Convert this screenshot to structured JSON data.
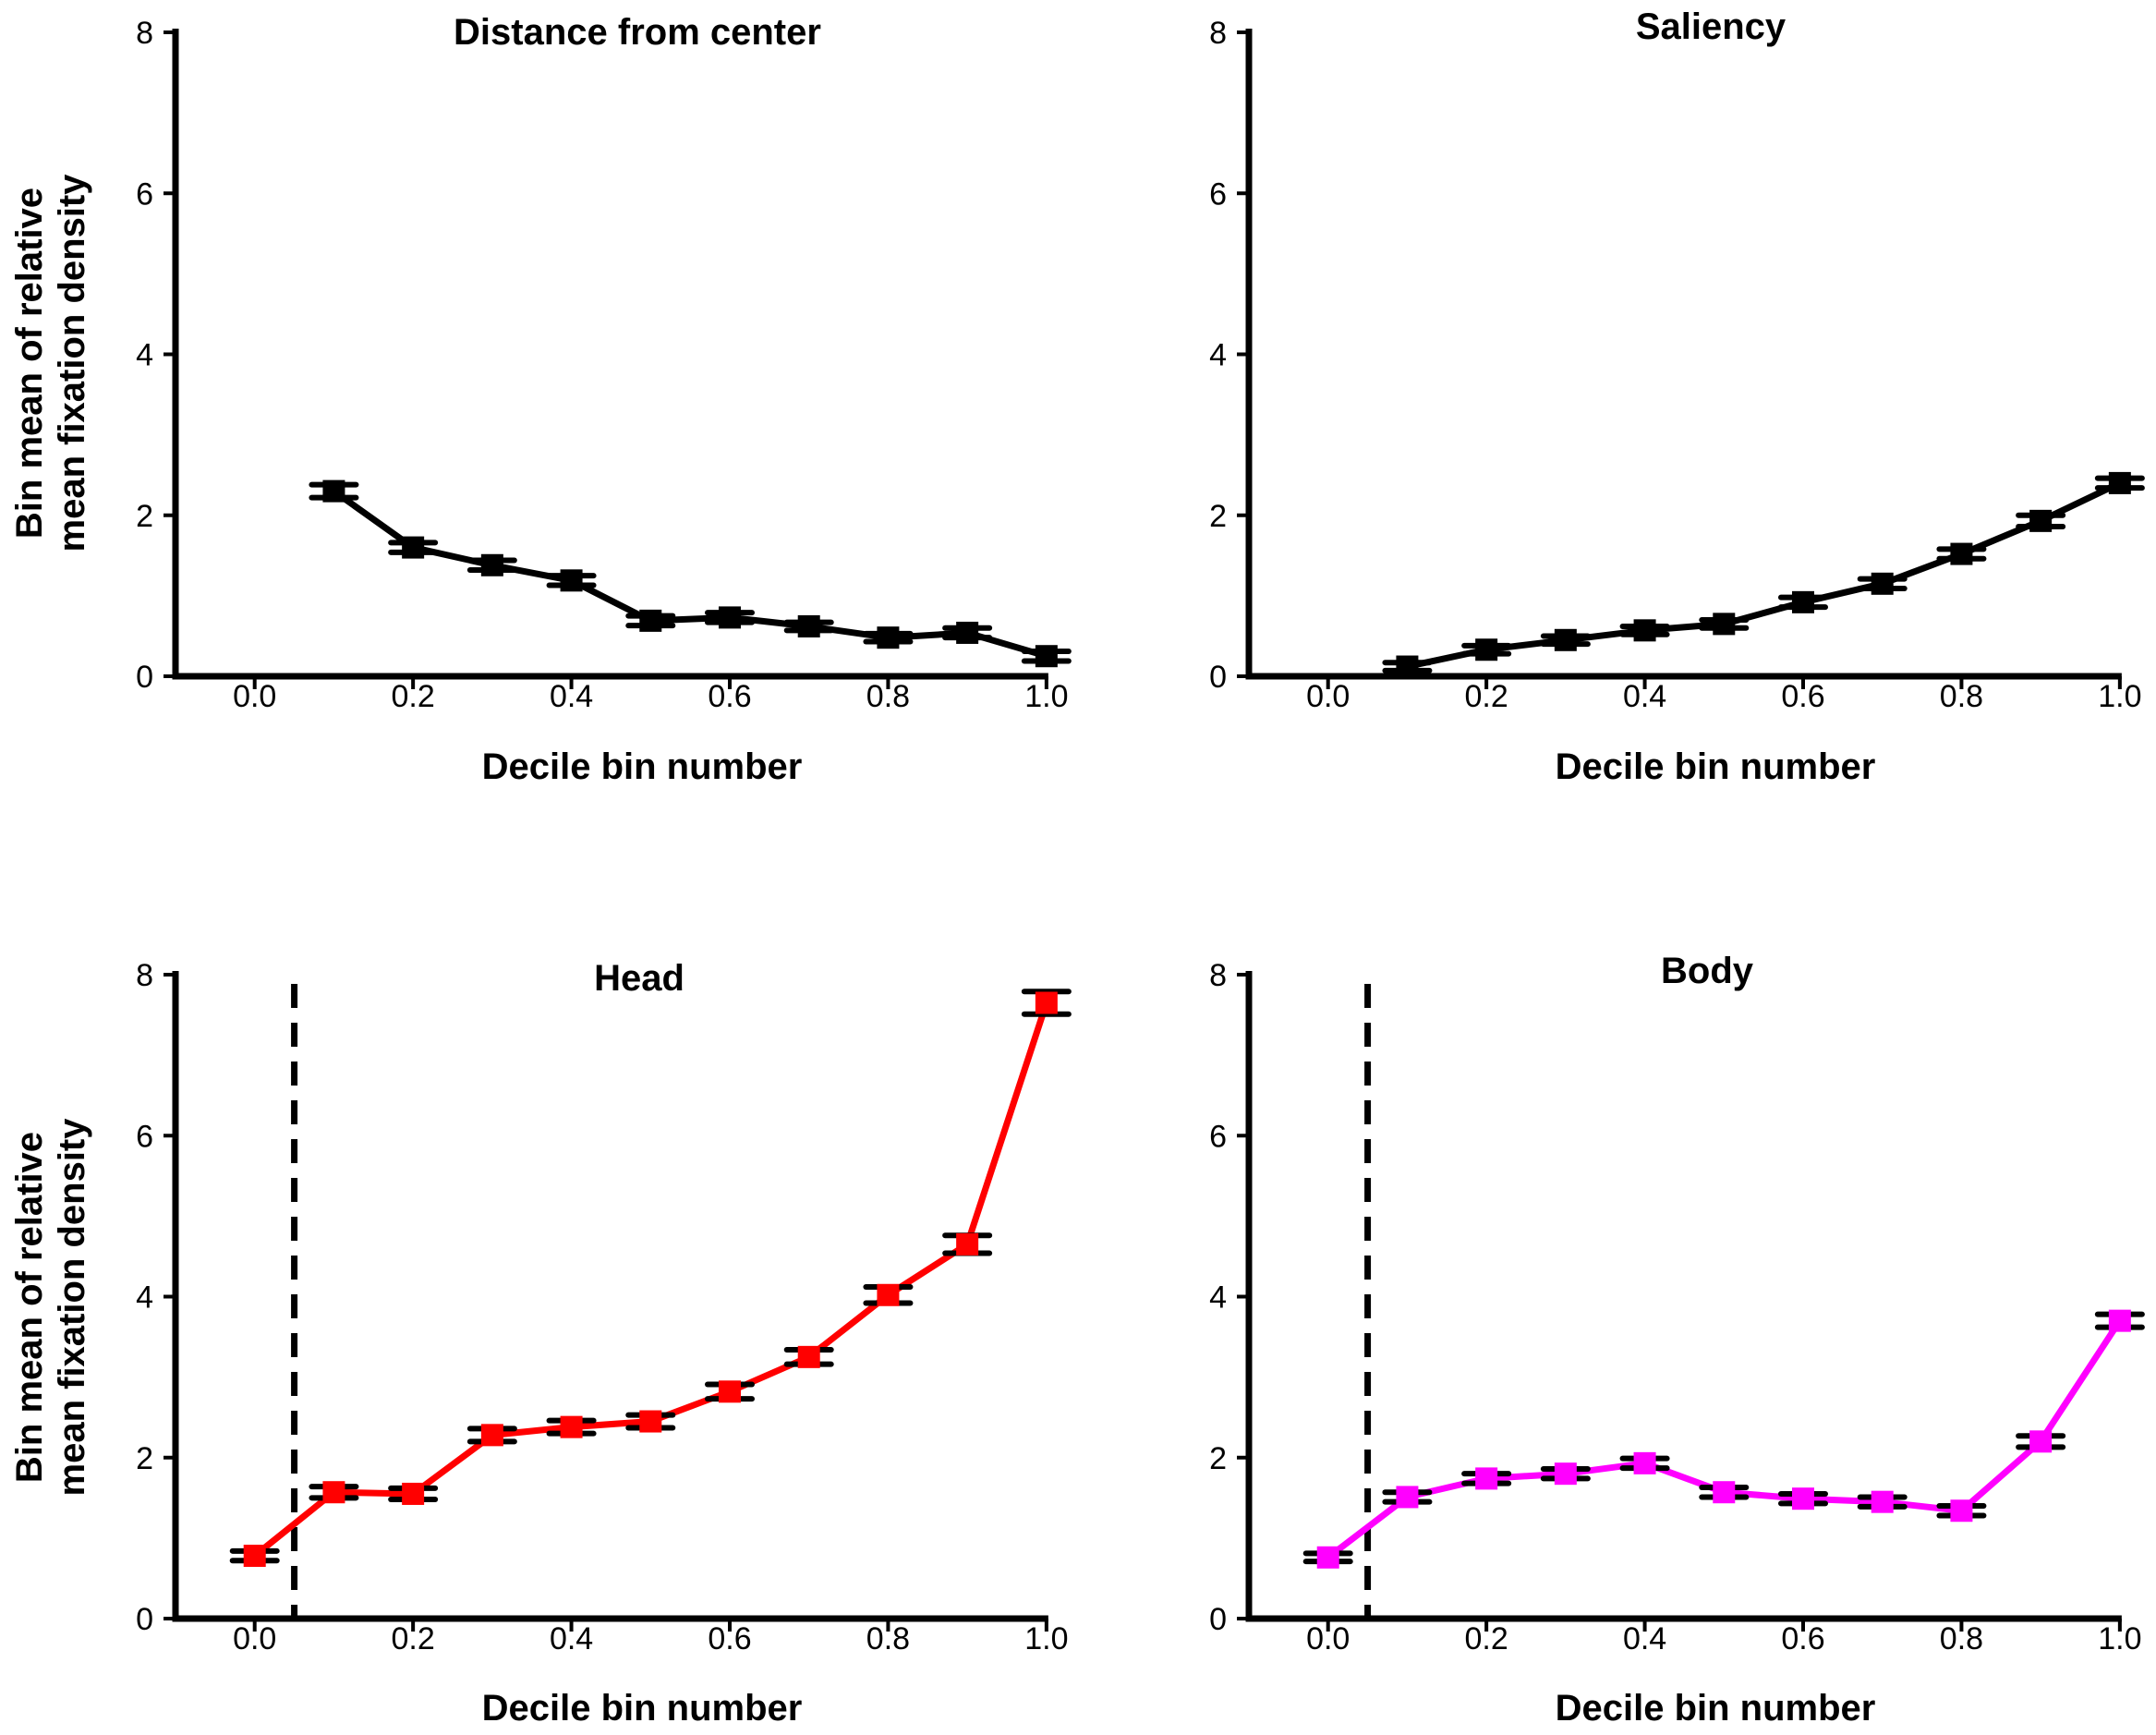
{
  "chart_data": [
    {
      "type": "line",
      "title": "Distance from center",
      "xlabel": "Decile bin number",
      "ylabel": [
        "Bin mean of relative",
        "mean fixation density"
      ],
      "xlim": [
        -0.1,
        1.02
      ],
      "ylim": [
        0,
        8
      ],
      "xticks": [
        0.0,
        0.2,
        0.4,
        0.6,
        0.8,
        1.0
      ],
      "xtick_labels": [
        "0.0",
        "0.2",
        "0.4",
        "0.6",
        "0.8",
        "1.0"
      ],
      "yticks": [
        0,
        2,
        4,
        6,
        8
      ],
      "ytick_labels": [
        "0",
        "2",
        "4",
        "6",
        "8"
      ],
      "dashed_vline_x": null,
      "series": [
        {
          "name": "Distance from center",
          "color": "#000000",
          "marker_color": "#000000",
          "x": [
            0.1,
            0.2,
            0.3,
            0.4,
            0.5,
            0.6,
            0.7,
            0.8,
            0.9,
            1.0
          ],
          "y": [
            2.3,
            1.6,
            1.38,
            1.19,
            0.69,
            0.73,
            0.62,
            0.48,
            0.54,
            0.25
          ],
          "err": [
            0.08,
            0.06,
            0.06,
            0.06,
            0.06,
            0.06,
            0.05,
            0.05,
            0.06,
            0.06
          ]
        }
      ]
    },
    {
      "type": "line",
      "title": "Saliency",
      "xlabel": "Decile bin number",
      "ylabel": null,
      "xlim": [
        -0.1,
        1.02
      ],
      "ylim": [
        0,
        8
      ],
      "xticks": [
        0.0,
        0.2,
        0.4,
        0.6,
        0.8,
        1.0
      ],
      "xtick_labels": [
        "0.0",
        "0.2",
        "0.4",
        "0.6",
        "0.8",
        "1.0"
      ],
      "yticks": [
        0,
        2,
        4,
        6,
        8
      ],
      "ytick_labels": [
        "0",
        "2",
        "4",
        "6",
        "8"
      ],
      "dashed_vline_x": null,
      "series": [
        {
          "name": "Saliency",
          "color": "#000000",
          "marker_color": "#000000",
          "x": [
            0.1,
            0.2,
            0.3,
            0.4,
            0.5,
            0.6,
            0.7,
            0.8,
            0.9,
            1.0
          ],
          "y": [
            0.12,
            0.33,
            0.45,
            0.57,
            0.65,
            0.92,
            1.15,
            1.52,
            1.93,
            2.4
          ],
          "err": [
            0.05,
            0.05,
            0.05,
            0.05,
            0.05,
            0.06,
            0.06,
            0.06,
            0.07,
            0.06
          ]
        }
      ]
    },
    {
      "type": "line",
      "title": "Head",
      "xlabel": "Decile bin number",
      "ylabel": [
        "Bin mean of relative",
        "mean fixation density"
      ],
      "xlim": [
        -0.1,
        1.02
      ],
      "ylim": [
        0,
        8
      ],
      "xticks": [
        0.0,
        0.2,
        0.4,
        0.6,
        0.8,
        1.0
      ],
      "xtick_labels": [
        "0.0",
        "0.2",
        "0.4",
        "0.6",
        "0.8",
        "1.0"
      ],
      "yticks": [
        0,
        2,
        4,
        6,
        8
      ],
      "ytick_labels": [
        "0",
        "2",
        "4",
        "6",
        "8"
      ],
      "dashed_vline_x": 0.05,
      "series": [
        {
          "name": "Head",
          "color": "#ff0000",
          "marker_color": "#ff0000",
          "x": [
            0.0,
            0.1,
            0.2,
            0.3,
            0.4,
            0.5,
            0.6,
            0.7,
            0.8,
            0.9,
            1.0
          ],
          "y": [
            0.78,
            1.57,
            1.55,
            2.28,
            2.38,
            2.45,
            2.82,
            3.25,
            4.02,
            4.65,
            7.65
          ],
          "err": [
            0.06,
            0.07,
            0.07,
            0.08,
            0.08,
            0.08,
            0.09,
            0.09,
            0.1,
            0.11,
            0.14
          ]
        }
      ]
    },
    {
      "type": "line",
      "title": "Body",
      "xlabel": "Decile bin number",
      "ylabel": null,
      "xlim": [
        -0.1,
        1.02
      ],
      "ylim": [
        0,
        8
      ],
      "xticks": [
        0.0,
        0.2,
        0.4,
        0.6,
        0.8,
        1.0
      ],
      "xtick_labels": [
        "0.0",
        "0.2",
        "0.4",
        "0.6",
        "0.8",
        "1.0"
      ],
      "yticks": [
        0,
        2,
        4,
        6,
        8
      ],
      "ytick_labels": [
        "0",
        "2",
        "4",
        "6",
        "8"
      ],
      "dashed_vline_x": 0.05,
      "series": [
        {
          "name": "Body",
          "color": "#ff00ff",
          "marker_color": "#ff00ff",
          "x": [
            0.0,
            0.1,
            0.2,
            0.3,
            0.4,
            0.5,
            0.6,
            0.7,
            0.8,
            0.9,
            1.0
          ],
          "y": [
            0.76,
            1.51,
            1.74,
            1.8,
            1.93,
            1.57,
            1.49,
            1.45,
            1.34,
            2.2,
            3.7
          ],
          "err": [
            0.05,
            0.06,
            0.06,
            0.06,
            0.06,
            0.06,
            0.06,
            0.06,
            0.06,
            0.07,
            0.08
          ]
        }
      ]
    }
  ]
}
